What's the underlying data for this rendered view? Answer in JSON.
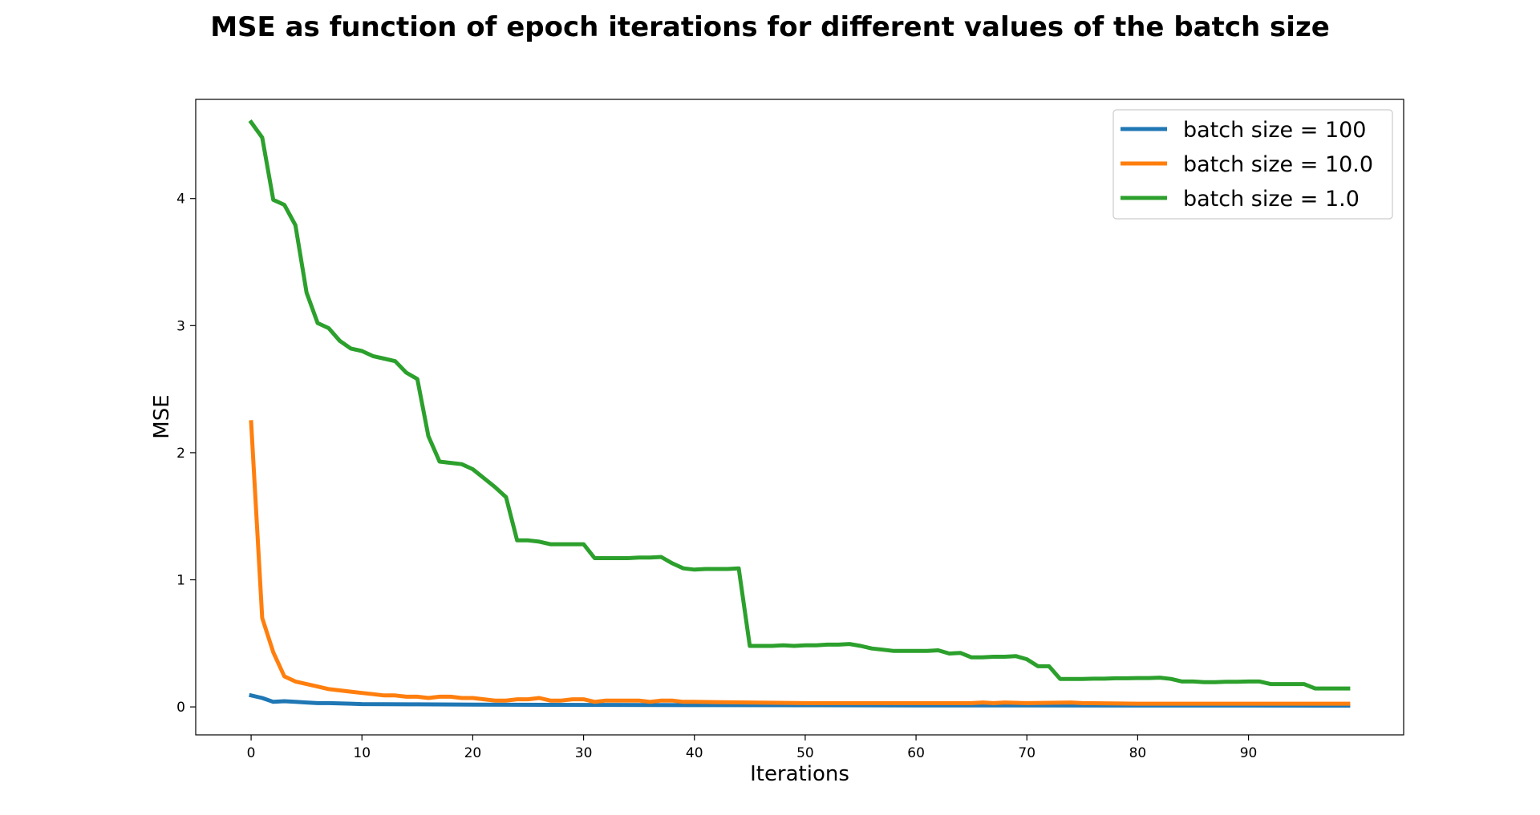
{
  "chart_data": {
    "type": "line",
    "title": "MSE as function of epoch iterations for different values of the batch size",
    "xlabel": "Iterations",
    "ylabel": "MSE",
    "xlim": [
      -5,
      104
    ],
    "ylim": [
      -0.22,
      4.78
    ],
    "xticks": [
      0,
      10,
      20,
      30,
      40,
      50,
      60,
      70,
      80,
      90
    ],
    "yticks": [
      0,
      1,
      2,
      3,
      4
    ],
    "grid": false,
    "legend_position": "top-right",
    "series": [
      {
        "name": "batch size = 100",
        "color": "#1f77b4",
        "x": [
          0,
          1,
          2,
          3,
          4,
          5,
          6,
          7,
          8,
          9,
          10,
          15,
          20,
          30,
          40,
          50,
          60,
          70,
          80,
          90,
          99
        ],
        "y": [
          0.09,
          0.07,
          0.04,
          0.045,
          0.04,
          0.035,
          0.03,
          0.03,
          0.028,
          0.025,
          0.022,
          0.02,
          0.018,
          0.016,
          0.014,
          0.013,
          0.012,
          0.012,
          0.011,
          0.011,
          0.01
        ]
      },
      {
        "name": "batch size = 10.0",
        "color": "#ff7f0e",
        "x": [
          0,
          1,
          2,
          3,
          4,
          5,
          6,
          7,
          8,
          9,
          10,
          11,
          12,
          13,
          14,
          15,
          16,
          17,
          18,
          19,
          20,
          21,
          22,
          23,
          24,
          25,
          26,
          27,
          28,
          29,
          30,
          31,
          32,
          33,
          34,
          35,
          36,
          37,
          38,
          39,
          40,
          45,
          50,
          55,
          60,
          65,
          66,
          67,
          68,
          70,
          74,
          75,
          80,
          90,
          99
        ],
        "y": [
          2.24,
          0.7,
          0.43,
          0.24,
          0.2,
          0.18,
          0.16,
          0.14,
          0.13,
          0.12,
          0.11,
          0.1,
          0.09,
          0.09,
          0.08,
          0.08,
          0.07,
          0.08,
          0.08,
          0.07,
          0.07,
          0.06,
          0.05,
          0.05,
          0.06,
          0.06,
          0.07,
          0.05,
          0.05,
          0.06,
          0.06,
          0.04,
          0.05,
          0.05,
          0.05,
          0.05,
          0.04,
          0.05,
          0.05,
          0.04,
          0.04,
          0.035,
          0.03,
          0.03,
          0.03,
          0.03,
          0.035,
          0.03,
          0.035,
          0.03,
          0.035,
          0.03,
          0.025,
          0.025,
          0.025
        ]
      },
      {
        "name": "batch size = 1.0",
        "color": "#2ca02c",
        "x": [
          0,
          1,
          2,
          3,
          4,
          5,
          6,
          7,
          8,
          9,
          10,
          11,
          12,
          13,
          14,
          15,
          16,
          17,
          18,
          19,
          20,
          21,
          22,
          23,
          24,
          25,
          26,
          27,
          28,
          29,
          30,
          31,
          32,
          33,
          34,
          35,
          36,
          37,
          38,
          39,
          40,
          41,
          42,
          43,
          44,
          45,
          46,
          47,
          48,
          49,
          50,
          51,
          52,
          53,
          54,
          55,
          56,
          57,
          58,
          59,
          60,
          61,
          62,
          63,
          64,
          65,
          66,
          67,
          68,
          69,
          70,
          71,
          72,
          73,
          74,
          75,
          76,
          77,
          78,
          79,
          80,
          81,
          82,
          83,
          84,
          85,
          86,
          87,
          88,
          89,
          90,
          91,
          92,
          93,
          94,
          95,
          96,
          97,
          98,
          99
        ],
        "y": [
          4.6,
          4.48,
          3.99,
          3.95,
          3.79,
          3.26,
          3.02,
          2.98,
          2.88,
          2.82,
          2.8,
          2.76,
          2.74,
          2.72,
          2.63,
          2.58,
          2.13,
          1.93,
          1.92,
          1.91,
          1.87,
          1.8,
          1.73,
          1.65,
          1.31,
          1.31,
          1.3,
          1.28,
          1.28,
          1.28,
          1.28,
          1.17,
          1.17,
          1.17,
          1.17,
          1.175,
          1.175,
          1.18,
          1.13,
          1.09,
          1.08,
          1.085,
          1.085,
          1.085,
          1.09,
          0.48,
          0.48,
          0.48,
          0.485,
          0.48,
          0.485,
          0.485,
          0.49,
          0.49,
          0.495,
          0.48,
          0.46,
          0.45,
          0.44,
          0.44,
          0.44,
          0.44,
          0.445,
          0.42,
          0.425,
          0.39,
          0.39,
          0.395,
          0.395,
          0.4,
          0.375,
          0.32,
          0.32,
          0.22,
          0.22,
          0.22,
          0.222,
          0.222,
          0.225,
          0.225,
          0.227,
          0.227,
          0.23,
          0.22,
          0.2,
          0.2,
          0.195,
          0.195,
          0.198,
          0.198,
          0.2,
          0.2,
          0.18,
          0.18,
          0.18,
          0.18,
          0.145,
          0.145,
          0.145,
          0.145
        ]
      }
    ]
  }
}
